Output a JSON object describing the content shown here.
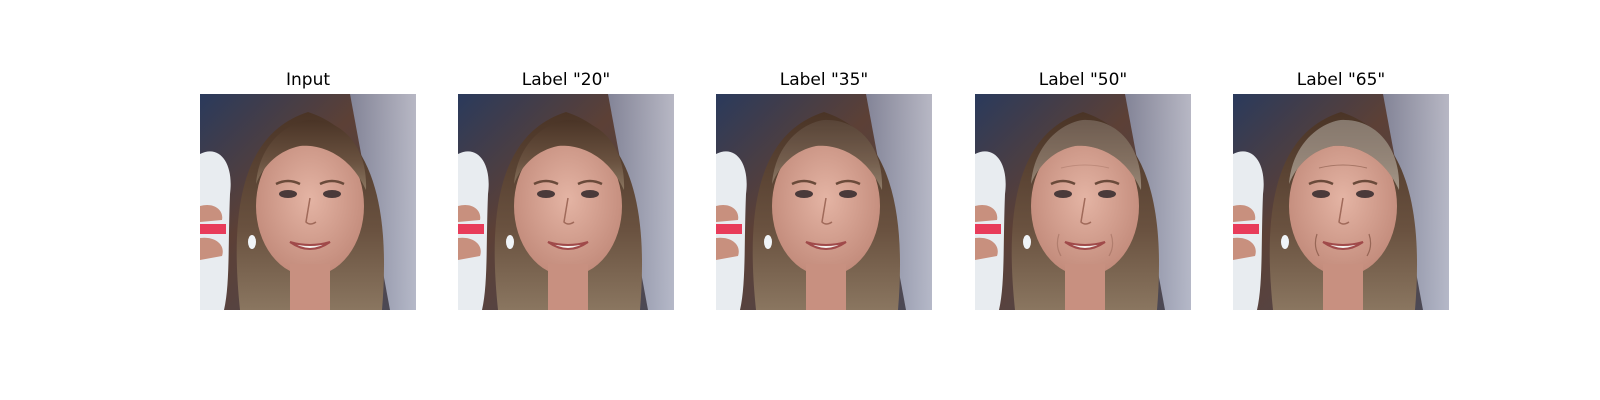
{
  "panels": [
    {
      "title": "Input",
      "age": 0
    },
    {
      "title": "Label \"20\"",
      "age": 0
    },
    {
      "title": "Label \"35\"",
      "age": 0.25
    },
    {
      "title": "Label \"50\"",
      "age": 0.6
    },
    {
      "title": "Label \"65\"",
      "age": 1
    }
  ]
}
